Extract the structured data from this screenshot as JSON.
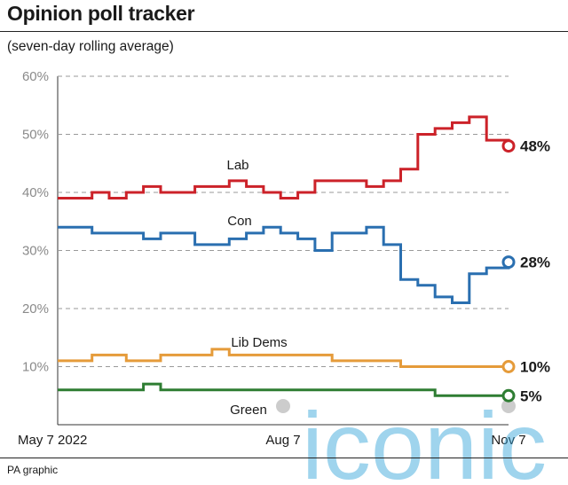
{
  "header": {
    "title": "Opinion poll tracker",
    "subtitle": "(seven-day rolling average)"
  },
  "footer": {
    "credit": "PA graphic"
  },
  "watermark": {
    "text": "iconic"
  },
  "chart_data": {
    "type": "line",
    "title": "Opinion poll tracker",
    "subtitle": "(seven-day rolling average)",
    "x_tick_labels": [
      "May 7 2022",
      "Aug 7",
      "Nov 7"
    ],
    "x_tick_dates": [
      "2022-05-07",
      "2022-08-07",
      "2022-11-07"
    ],
    "x_range": [
      "2022-05-07",
      "2022-11-07"
    ],
    "ylim": [
      0,
      60
    ],
    "y_ticks": [
      10,
      20,
      30,
      40,
      50,
      60
    ],
    "y_tick_labels": [
      "10%",
      "20%",
      "30%",
      "40%",
      "50%",
      "60%"
    ],
    "grid": true,
    "x": [
      "2022-05-07",
      "2022-05-14",
      "2022-05-21",
      "2022-05-28",
      "2022-06-04",
      "2022-06-11",
      "2022-06-18",
      "2022-06-25",
      "2022-07-02",
      "2022-07-09",
      "2022-07-16",
      "2022-07-23",
      "2022-07-30",
      "2022-08-06",
      "2022-08-13",
      "2022-08-20",
      "2022-08-27",
      "2022-09-03",
      "2022-09-10",
      "2022-09-17",
      "2022-09-24",
      "2022-10-01",
      "2022-10-08",
      "2022-10-15",
      "2022-10-22",
      "2022-10-29",
      "2022-11-07"
    ],
    "series": [
      {
        "name": "Lab",
        "color": "#cc2229",
        "end_label": "48%",
        "values": [
          39,
          39,
          40,
          39,
          40,
          41,
          40,
          40,
          41,
          41,
          42,
          41,
          40,
          39,
          40,
          42,
          42,
          42,
          41,
          42,
          44,
          50,
          51,
          52,
          53,
          49,
          48
        ]
      },
      {
        "name": "Con",
        "color": "#2a6fb0",
        "end_label": "28%",
        "values": [
          34,
          34,
          33,
          33,
          33,
          32,
          33,
          33,
          31,
          31,
          32,
          33,
          34,
          33,
          32,
          30,
          33,
          33,
          34,
          31,
          25,
          24,
          22,
          21,
          26,
          27,
          28
        ]
      },
      {
        "name": "Lib Dems",
        "color": "#e59b3a",
        "end_label": "10%",
        "values": [
          11,
          11,
          12,
          12,
          11,
          11,
          12,
          12,
          12,
          13,
          12,
          12,
          12,
          12,
          12,
          12,
          11,
          11,
          11,
          11,
          10,
          10,
          10,
          10,
          10,
          10,
          10
        ]
      },
      {
        "name": "Green",
        "color": "#2e7d32",
        "end_label": "5%",
        "values": [
          6,
          6,
          6,
          6,
          6,
          7,
          6,
          6,
          6,
          6,
          6,
          6,
          6,
          6,
          6,
          6,
          6,
          6,
          6,
          6,
          6,
          6,
          5,
          5,
          5,
          5,
          5
        ]
      }
    ]
  }
}
